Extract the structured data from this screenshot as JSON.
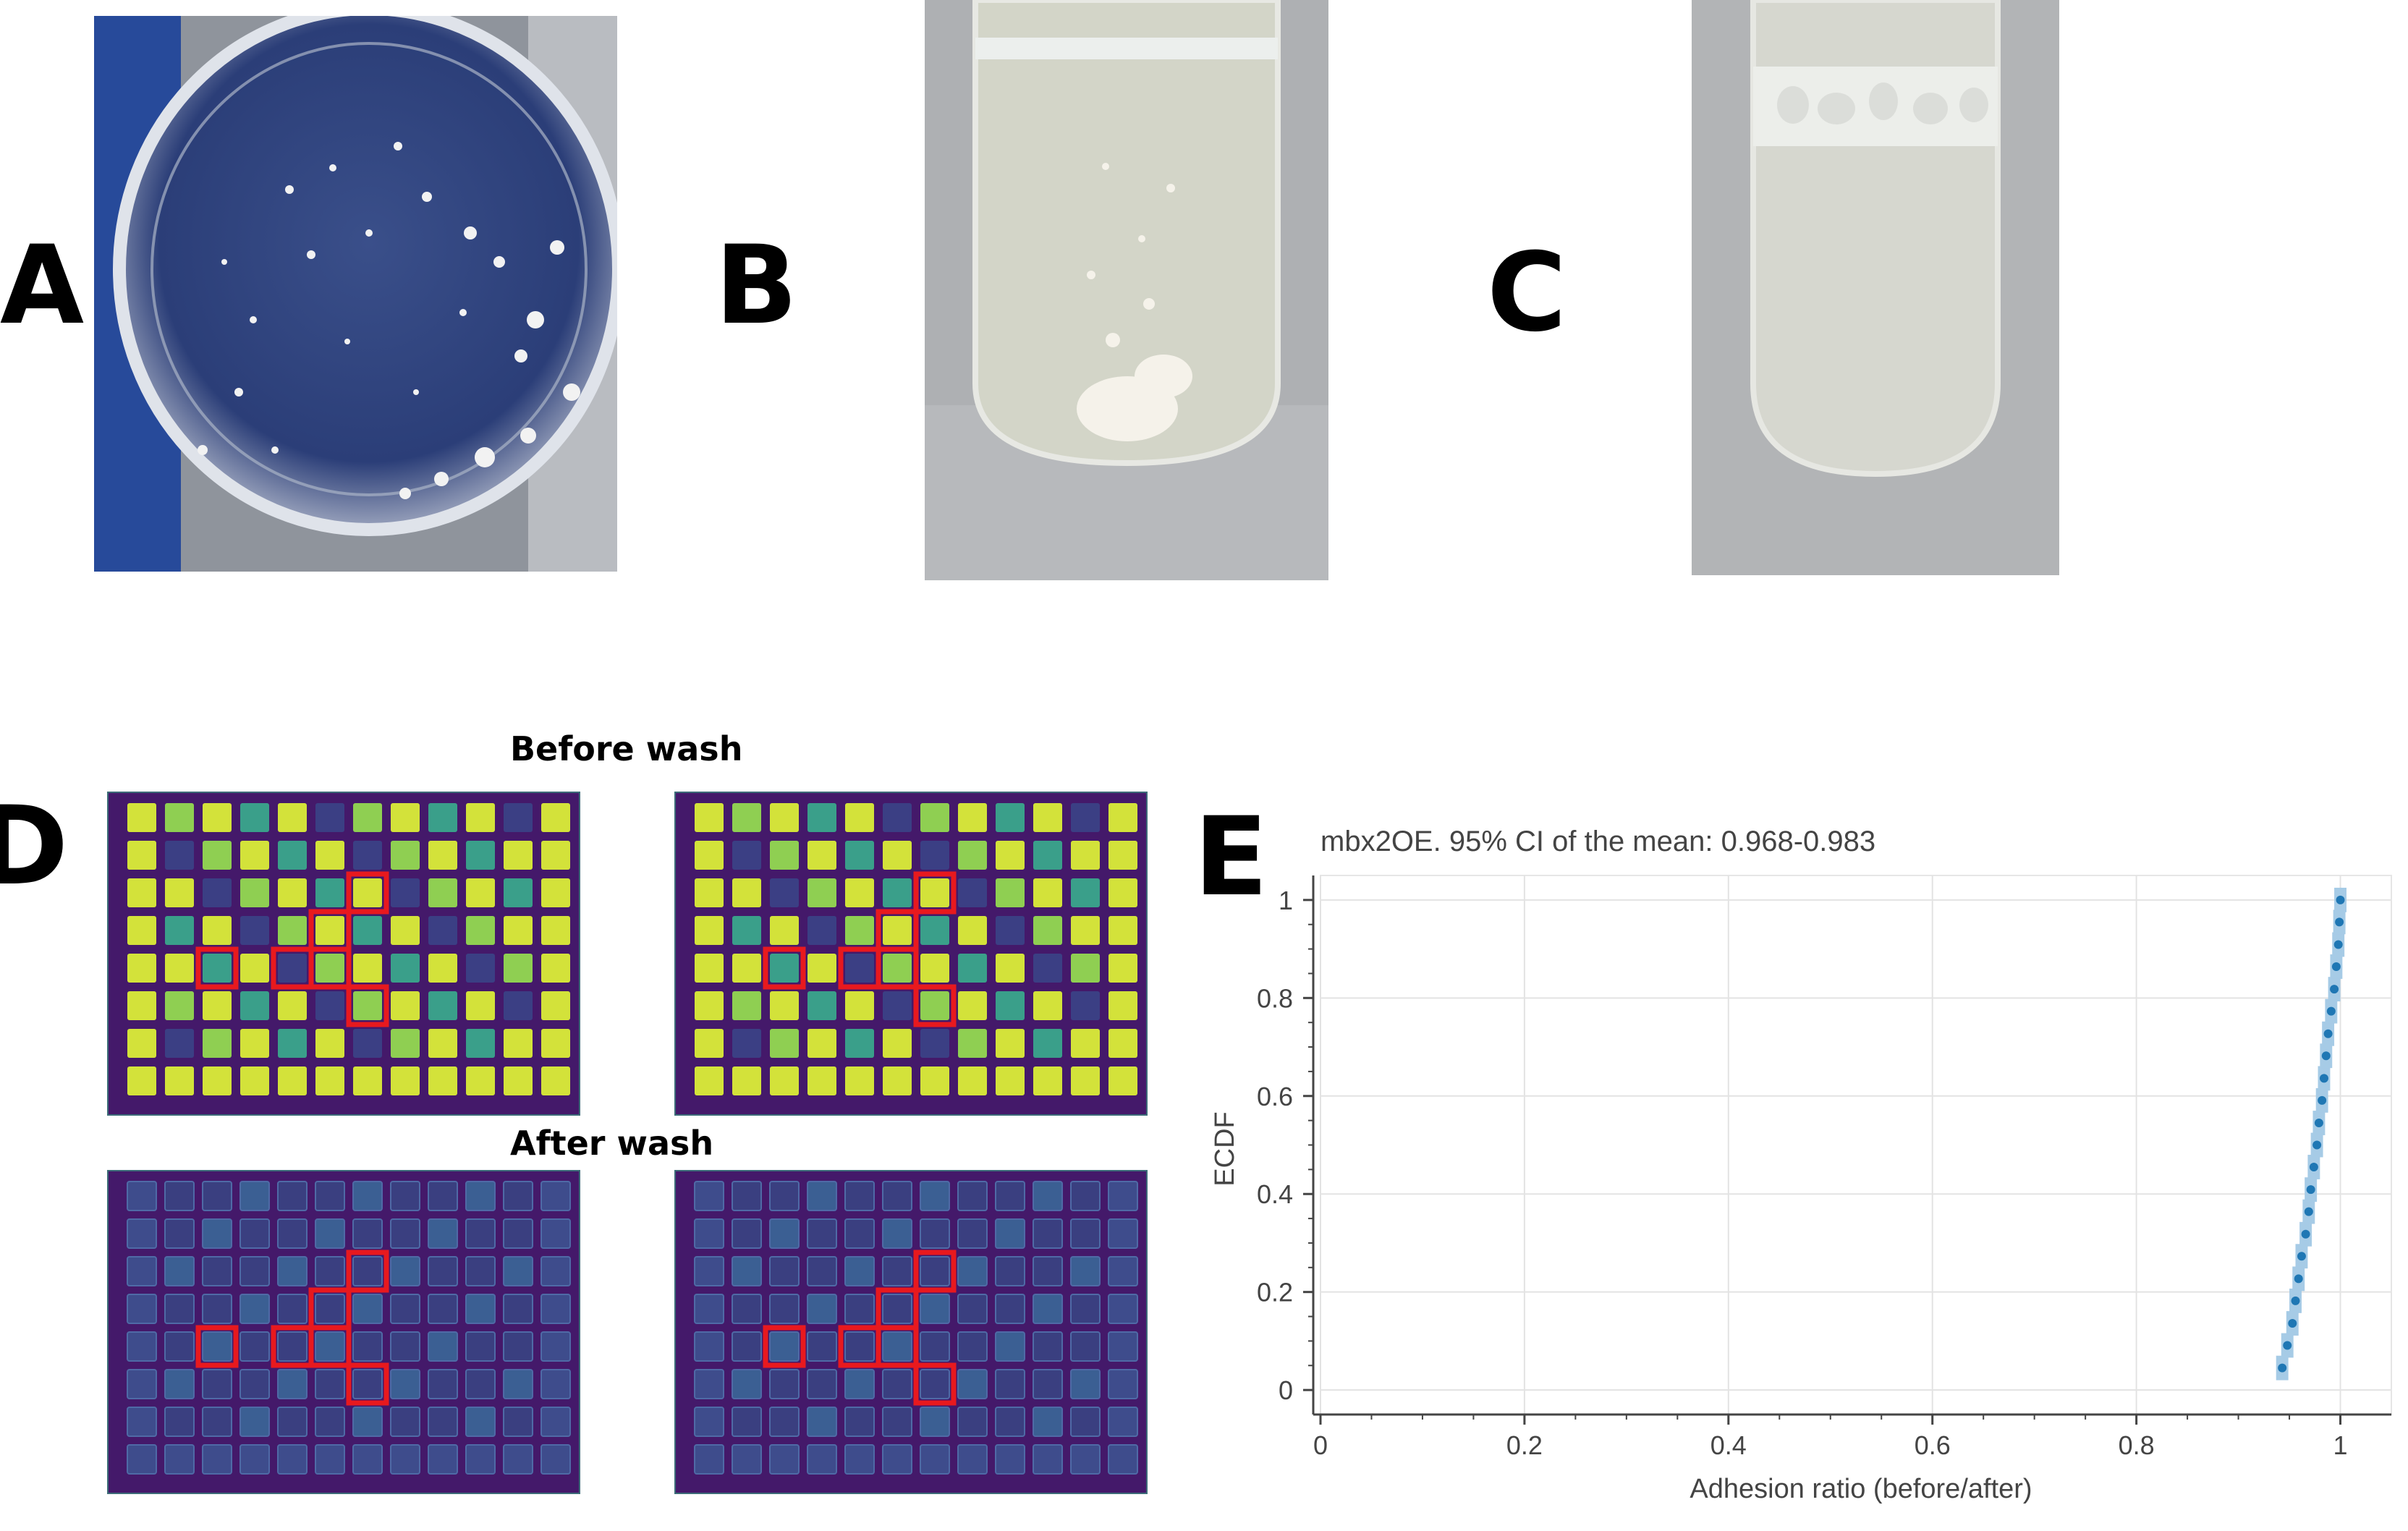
{
  "panels": {
    "a": {
      "letter": "A"
    },
    "b": {
      "letter": "B"
    },
    "c": {
      "letter": "C"
    },
    "d": {
      "letter": "D",
      "before_label": "Before wash",
      "after_label": "After wash"
    },
    "e": {
      "letter": "E"
    }
  },
  "colors": {
    "plate_background": "#44196a",
    "well_bright": "#d3e23a",
    "well_mid": "#3a9f8a",
    "well_dim": "#3b3f84",
    "highlight": "#e8191e",
    "point": "#1f77b4",
    "ci_band": "#a6cbe6"
  },
  "chart_data": {
    "type": "scatter",
    "title": "mbx2OE. 95% CI of the mean: 0.968-0.983",
    "xlabel": "Adhesion ratio (before/after)",
    "ylabel": "ECDF",
    "xlim": [
      0,
      1.05
    ],
    "ylim": [
      -0.05,
      1.05
    ],
    "xticks": [
      0,
      0.2,
      0.4,
      0.6,
      0.8,
      1
    ],
    "xtick_labels": [
      "0",
      "0.2",
      "0.4",
      "0.6",
      "0.8",
      "1"
    ],
    "yticks": [
      0,
      0.2,
      0.4,
      0.6,
      0.8,
      1
    ],
    "ytick_labels": [
      "0",
      "0.2",
      "0.4",
      "0.6",
      "0.8",
      "1"
    ],
    "grid": true,
    "points": [
      {
        "x": 0.943,
        "y": 0.045
      },
      {
        "x": 0.948,
        "y": 0.091
      },
      {
        "x": 0.953,
        "y": 0.136
      },
      {
        "x": 0.956,
        "y": 0.182
      },
      {
        "x": 0.959,
        "y": 0.227
      },
      {
        "x": 0.962,
        "y": 0.273
      },
      {
        "x": 0.966,
        "y": 0.318
      },
      {
        "x": 0.969,
        "y": 0.364
      },
      {
        "x": 0.971,
        "y": 0.409
      },
      {
        "x": 0.974,
        "y": 0.455
      },
      {
        "x": 0.977,
        "y": 0.5
      },
      {
        "x": 0.979,
        "y": 0.545
      },
      {
        "x": 0.982,
        "y": 0.591
      },
      {
        "x": 0.984,
        "y": 0.636
      },
      {
        "x": 0.986,
        "y": 0.682
      },
      {
        "x": 0.988,
        "y": 0.727
      },
      {
        "x": 0.991,
        "y": 0.773
      },
      {
        "x": 0.994,
        "y": 0.818
      },
      {
        "x": 0.996,
        "y": 0.864
      },
      {
        "x": 0.998,
        "y": 0.909
      },
      {
        "x": 0.999,
        "y": 0.955
      },
      {
        "x": 1.0,
        "y": 1.0
      }
    ]
  }
}
